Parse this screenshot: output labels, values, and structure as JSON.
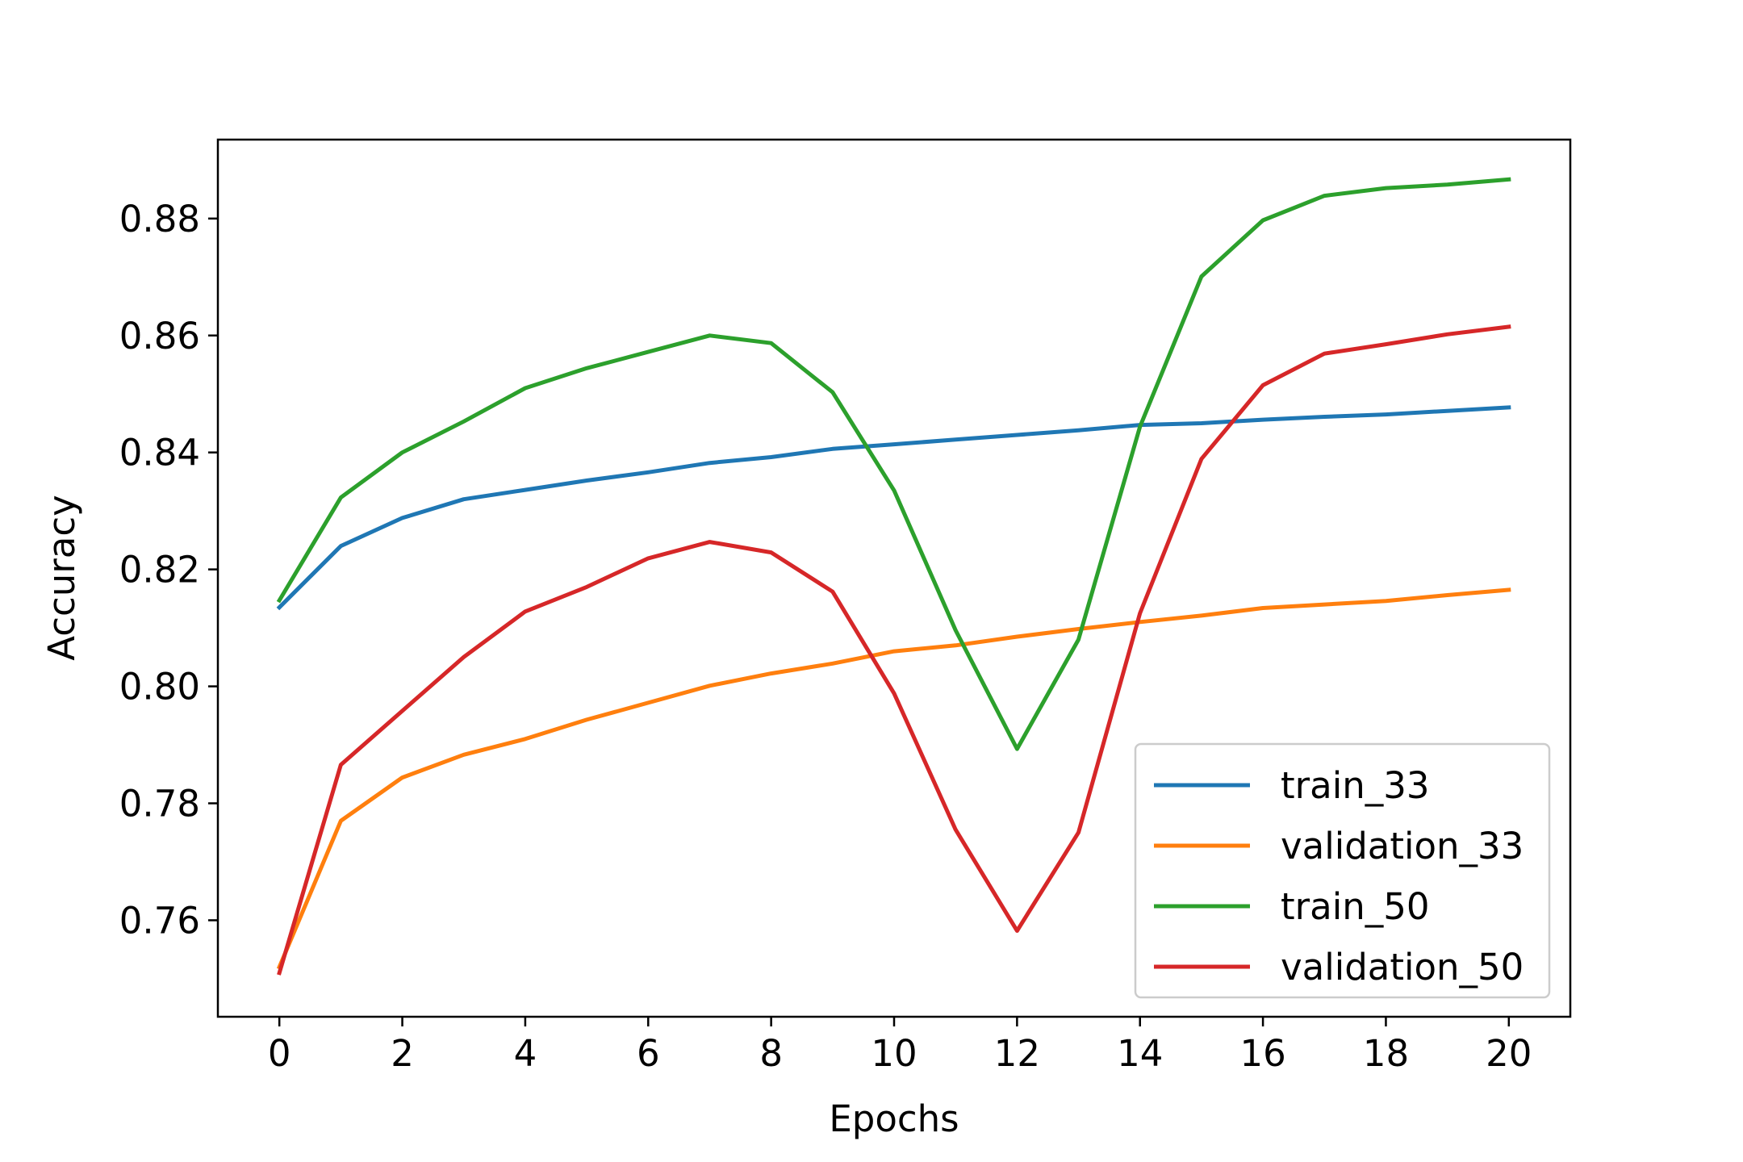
{
  "chart_data": {
    "type": "line",
    "title": "",
    "xlabel": "Epochs",
    "ylabel": "Accuracy",
    "xlim": [
      -1,
      21
    ],
    "ylim": [
      0.7435,
      0.8935
    ],
    "x_ticks": [
      0,
      2,
      4,
      6,
      8,
      10,
      12,
      14,
      16,
      18,
      20
    ],
    "y_ticks": [
      0.76,
      0.78,
      0.8,
      0.82,
      0.84,
      0.86,
      0.88
    ],
    "grid": false,
    "legend_position": "lower-right",
    "x": [
      0,
      1,
      2,
      3,
      4,
      5,
      6,
      7,
      8,
      9,
      10,
      11,
      12,
      13,
      14,
      15,
      16,
      17,
      18,
      19,
      20
    ],
    "series": [
      {
        "name": "train_33",
        "color": "#1f77b4",
        "values": [
          0.8135,
          0.824,
          0.8288,
          0.832,
          0.8336,
          0.8352,
          0.8366,
          0.8382,
          0.8392,
          0.8406,
          0.8414,
          0.8422,
          0.843,
          0.8438,
          0.8447,
          0.845,
          0.8456,
          0.8461,
          0.8465,
          0.8471,
          0.8477
        ]
      },
      {
        "name": "validation_33",
        "color": "#ff7f0e",
        "values": [
          0.752,
          0.777,
          0.7844,
          0.7883,
          0.791,
          0.7943,
          0.7972,
          0.8001,
          0.8022,
          0.8039,
          0.806,
          0.807,
          0.8085,
          0.8098,
          0.811,
          0.8121,
          0.8134,
          0.814,
          0.8146,
          0.8156,
          0.8165
        ]
      },
      {
        "name": "train_50",
        "color": "#2ca02c",
        "values": [
          0.8147,
          0.8323,
          0.84,
          0.8453,
          0.851,
          0.8544,
          0.8572,
          0.86,
          0.8587,
          0.8503,
          0.8335,
          0.8096,
          0.7893,
          0.808,
          0.8444,
          0.8701,
          0.8797,
          0.8839,
          0.8852,
          0.8858,
          0.8867
        ]
      },
      {
        "name": "validation_50",
        "color": "#d62728",
        "values": [
          0.751,
          0.7866,
          0.7958,
          0.805,
          0.8128,
          0.817,
          0.8219,
          0.8247,
          0.8229,
          0.8162,
          0.7988,
          0.7755,
          0.7582,
          0.775,
          0.8125,
          0.8389,
          0.8515,
          0.8569,
          0.8585,
          0.8602,
          0.8615
        ]
      }
    ]
  }
}
